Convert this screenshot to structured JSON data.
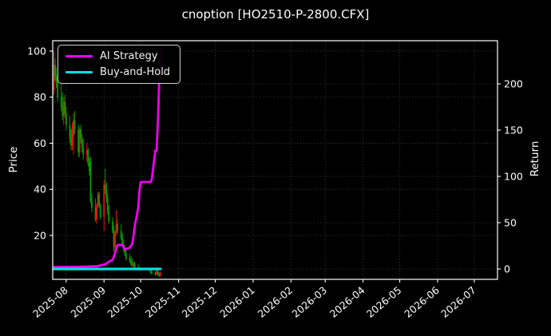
{
  "title": "cnoption [HO2510-P-2800.CFX]",
  "legend": {
    "items": [
      {
        "label": "AI Strategy",
        "color": "#ee00ee"
      },
      {
        "label": "Buy-and-Hold",
        "color": "#00e0e0"
      }
    ]
  },
  "axes": {
    "left": {
      "label": "Price",
      "ticks": [
        20,
        40,
        60,
        80,
        100
      ]
    },
    "right": {
      "label": "Return",
      "ticks": [
        0,
        50,
        100,
        150,
        200
      ]
    },
    "x": {
      "ticks": [
        "2025-08",
        "2025-09",
        "2025-10",
        "2025-11",
        "2025-12",
        "2026-01",
        "2026-02",
        "2026-03",
        "2026-04",
        "2026-05",
        "2026-06",
        "2026-07"
      ]
    }
  },
  "chart_data": {
    "type": "candlestick+line",
    "title": "cnoption [HO2510-P-2800.CFX]",
    "grid": "dotted",
    "legend_position": "upper-left",
    "x_axis": {
      "start": "2025-07-21",
      "end": "2026-07-20",
      "tick_format": "YYYY-MM"
    },
    "price_axis": {
      "label": "Price",
      "min": 0.95,
      "max": 104.5,
      "gridlines": [
        20,
        40,
        60,
        80,
        100
      ]
    },
    "return_axis": {
      "label": "Return",
      "min": -11.2,
      "max": 246.6,
      "gridlines": [
        0,
        50,
        100,
        150,
        200
      ]
    },
    "colors": {
      "up": "#ee1111",
      "down": "#00a000",
      "ai": "#ee00ee",
      "bh": "#00e0e0",
      "background": "#000000",
      "text": "#ffffff",
      "grid": "#3e3e3e",
      "spine": "#ffffff"
    },
    "candles": [
      [
        "2025-07-22",
        83,
        100,
        81,
        94
      ],
      [
        "2025-07-23",
        94,
        97,
        87,
        89
      ],
      [
        "2025-07-24",
        89,
        93,
        84,
        86
      ],
      [
        "2025-07-25",
        86,
        90,
        78,
        80
      ],
      [
        "2025-07-28",
        80,
        86,
        74,
        76
      ],
      [
        "2025-07-29",
        76,
        82,
        70,
        72
      ],
      [
        "2025-07-30",
        72,
        80,
        68,
        78
      ],
      [
        "2025-07-31",
        78,
        81,
        71,
        73
      ],
      [
        "2025-08-01",
        73,
        76,
        66,
        68
      ],
      [
        "2025-08-04",
        68,
        72,
        60,
        62
      ],
      [
        "2025-08-05",
        62,
        66,
        57,
        59
      ],
      [
        "2025-08-06",
        59,
        69,
        57,
        67
      ],
      [
        "2025-08-07",
        63,
        73,
        55,
        70
      ],
      [
        "2025-08-08",
        70,
        74,
        64,
        66
      ],
      [
        "2025-08-11",
        66,
        68,
        54,
        56
      ],
      [
        "2025-08-12",
        56,
        67,
        54,
        66
      ],
      [
        "2025-08-13",
        66,
        68,
        60,
        62
      ],
      [
        "2025-08-14",
        62,
        64,
        56,
        58
      ],
      [
        "2025-08-15",
        58,
        62,
        53,
        55
      ],
      [
        "2025-08-18",
        55,
        60,
        52,
        57
      ],
      [
        "2025-08-19",
        57,
        58,
        50,
        51
      ],
      [
        "2025-08-20",
        51,
        54,
        46,
        48
      ],
      [
        "2025-08-21",
        52,
        54,
        34,
        35
      ],
      [
        "2025-08-22",
        35,
        38,
        30,
        32
      ],
      [
        "2025-08-25",
        32,
        36,
        26,
        27
      ],
      [
        "2025-08-26",
        27,
        34,
        25,
        33
      ],
      [
        "2025-08-27",
        33,
        39,
        32,
        38
      ],
      [
        "2025-08-28",
        38,
        39,
        32,
        33
      ],
      [
        "2025-08-29",
        33,
        34,
        27,
        28
      ],
      [
        "2025-09-01",
        28,
        44,
        22,
        42
      ],
      [
        "2025-09-02",
        42,
        49,
        38,
        40
      ],
      [
        "2025-09-03",
        40,
        43,
        34,
        36
      ],
      [
        "2025-09-04",
        36,
        38,
        29,
        30
      ],
      [
        "2025-09-05",
        30,
        33,
        25,
        26
      ],
      [
        "2025-09-08",
        26,
        28,
        21,
        22
      ],
      [
        "2025-09-09",
        22,
        24,
        13,
        15
      ],
      [
        "2025-09-10",
        15,
        22,
        12,
        21
      ],
      [
        "2025-09-11",
        21,
        31,
        20,
        25
      ],
      [
        "2025-09-12",
        25,
        27,
        21,
        22
      ],
      [
        "2025-09-15",
        22,
        25,
        18,
        19
      ],
      [
        "2025-09-16",
        19,
        21,
        15,
        16
      ],
      [
        "2025-09-17",
        16,
        18,
        13,
        14
      ],
      [
        "2025-09-18",
        14,
        16,
        11,
        12
      ],
      [
        "2025-09-19",
        12,
        14,
        9,
        10
      ],
      [
        "2025-09-22",
        10,
        12,
        8,
        9
      ],
      [
        "2025-09-23",
        9,
        11,
        7,
        8
      ],
      [
        "2025-09-24",
        8,
        10,
        6.5,
        7
      ],
      [
        "2025-09-25",
        7,
        9,
        6,
        8
      ],
      [
        "2025-09-26",
        8,
        8.5,
        5.5,
        6
      ],
      [
        "2025-09-29",
        6,
        7.5,
        5,
        5.5
      ],
      [
        "2025-09-30",
        5.5,
        6.5,
        4.5,
        5
      ],
      [
        "2025-10-09",
        5,
        6,
        3.5,
        4
      ],
      [
        "2025-10-10",
        4,
        5,
        3,
        3.5
      ],
      [
        "2025-10-13",
        3.5,
        4.5,
        2.5,
        3
      ],
      [
        "2025-10-14",
        3,
        5,
        2.8,
        4.5
      ],
      [
        "2025-10-15",
        4.5,
        5,
        2.5,
        3
      ],
      [
        "2025-10-16",
        3,
        4,
        2,
        2.5
      ],
      [
        "2025-10-17",
        2.5,
        4.5,
        2,
        4
      ]
    ],
    "series": [
      {
        "name": "AI Strategy",
        "axis": "return",
        "color": "#ee00ee",
        "width": 2.8,
        "points": [
          [
            "2025-07-22",
            2
          ],
          [
            "2025-08-15",
            2.5
          ],
          [
            "2025-08-26",
            3
          ],
          [
            "2025-09-02",
            5
          ],
          [
            "2025-09-04",
            7
          ],
          [
            "2025-09-08",
            10
          ],
          [
            "2025-09-09",
            13
          ],
          [
            "2025-09-10",
            17
          ],
          [
            "2025-09-11",
            22
          ],
          [
            "2025-09-12",
            26
          ],
          [
            "2025-09-16",
            26
          ],
          [
            "2025-09-18",
            21
          ],
          [
            "2025-09-22",
            23
          ],
          [
            "2025-09-24",
            27
          ],
          [
            "2025-09-25",
            34
          ],
          [
            "2025-09-26",
            45
          ],
          [
            "2025-09-29",
            66
          ],
          [
            "2025-09-30",
            84
          ],
          [
            "2025-10-01",
            94
          ],
          [
            "2025-10-09",
            94
          ],
          [
            "2025-10-10",
            96
          ],
          [
            "2025-10-13",
            128
          ],
          [
            "2025-10-14",
            128
          ],
          [
            "2025-10-15",
            157
          ],
          [
            "2025-10-16",
            196
          ],
          [
            "2025-10-17",
            237
          ]
        ]
      },
      {
        "name": "Buy-and-Hold",
        "axis": "return",
        "color": "#00e0e0",
        "width": 3.2,
        "points": [
          [
            "2025-07-22",
            0
          ],
          [
            "2025-10-17",
            0
          ]
        ]
      }
    ]
  }
}
